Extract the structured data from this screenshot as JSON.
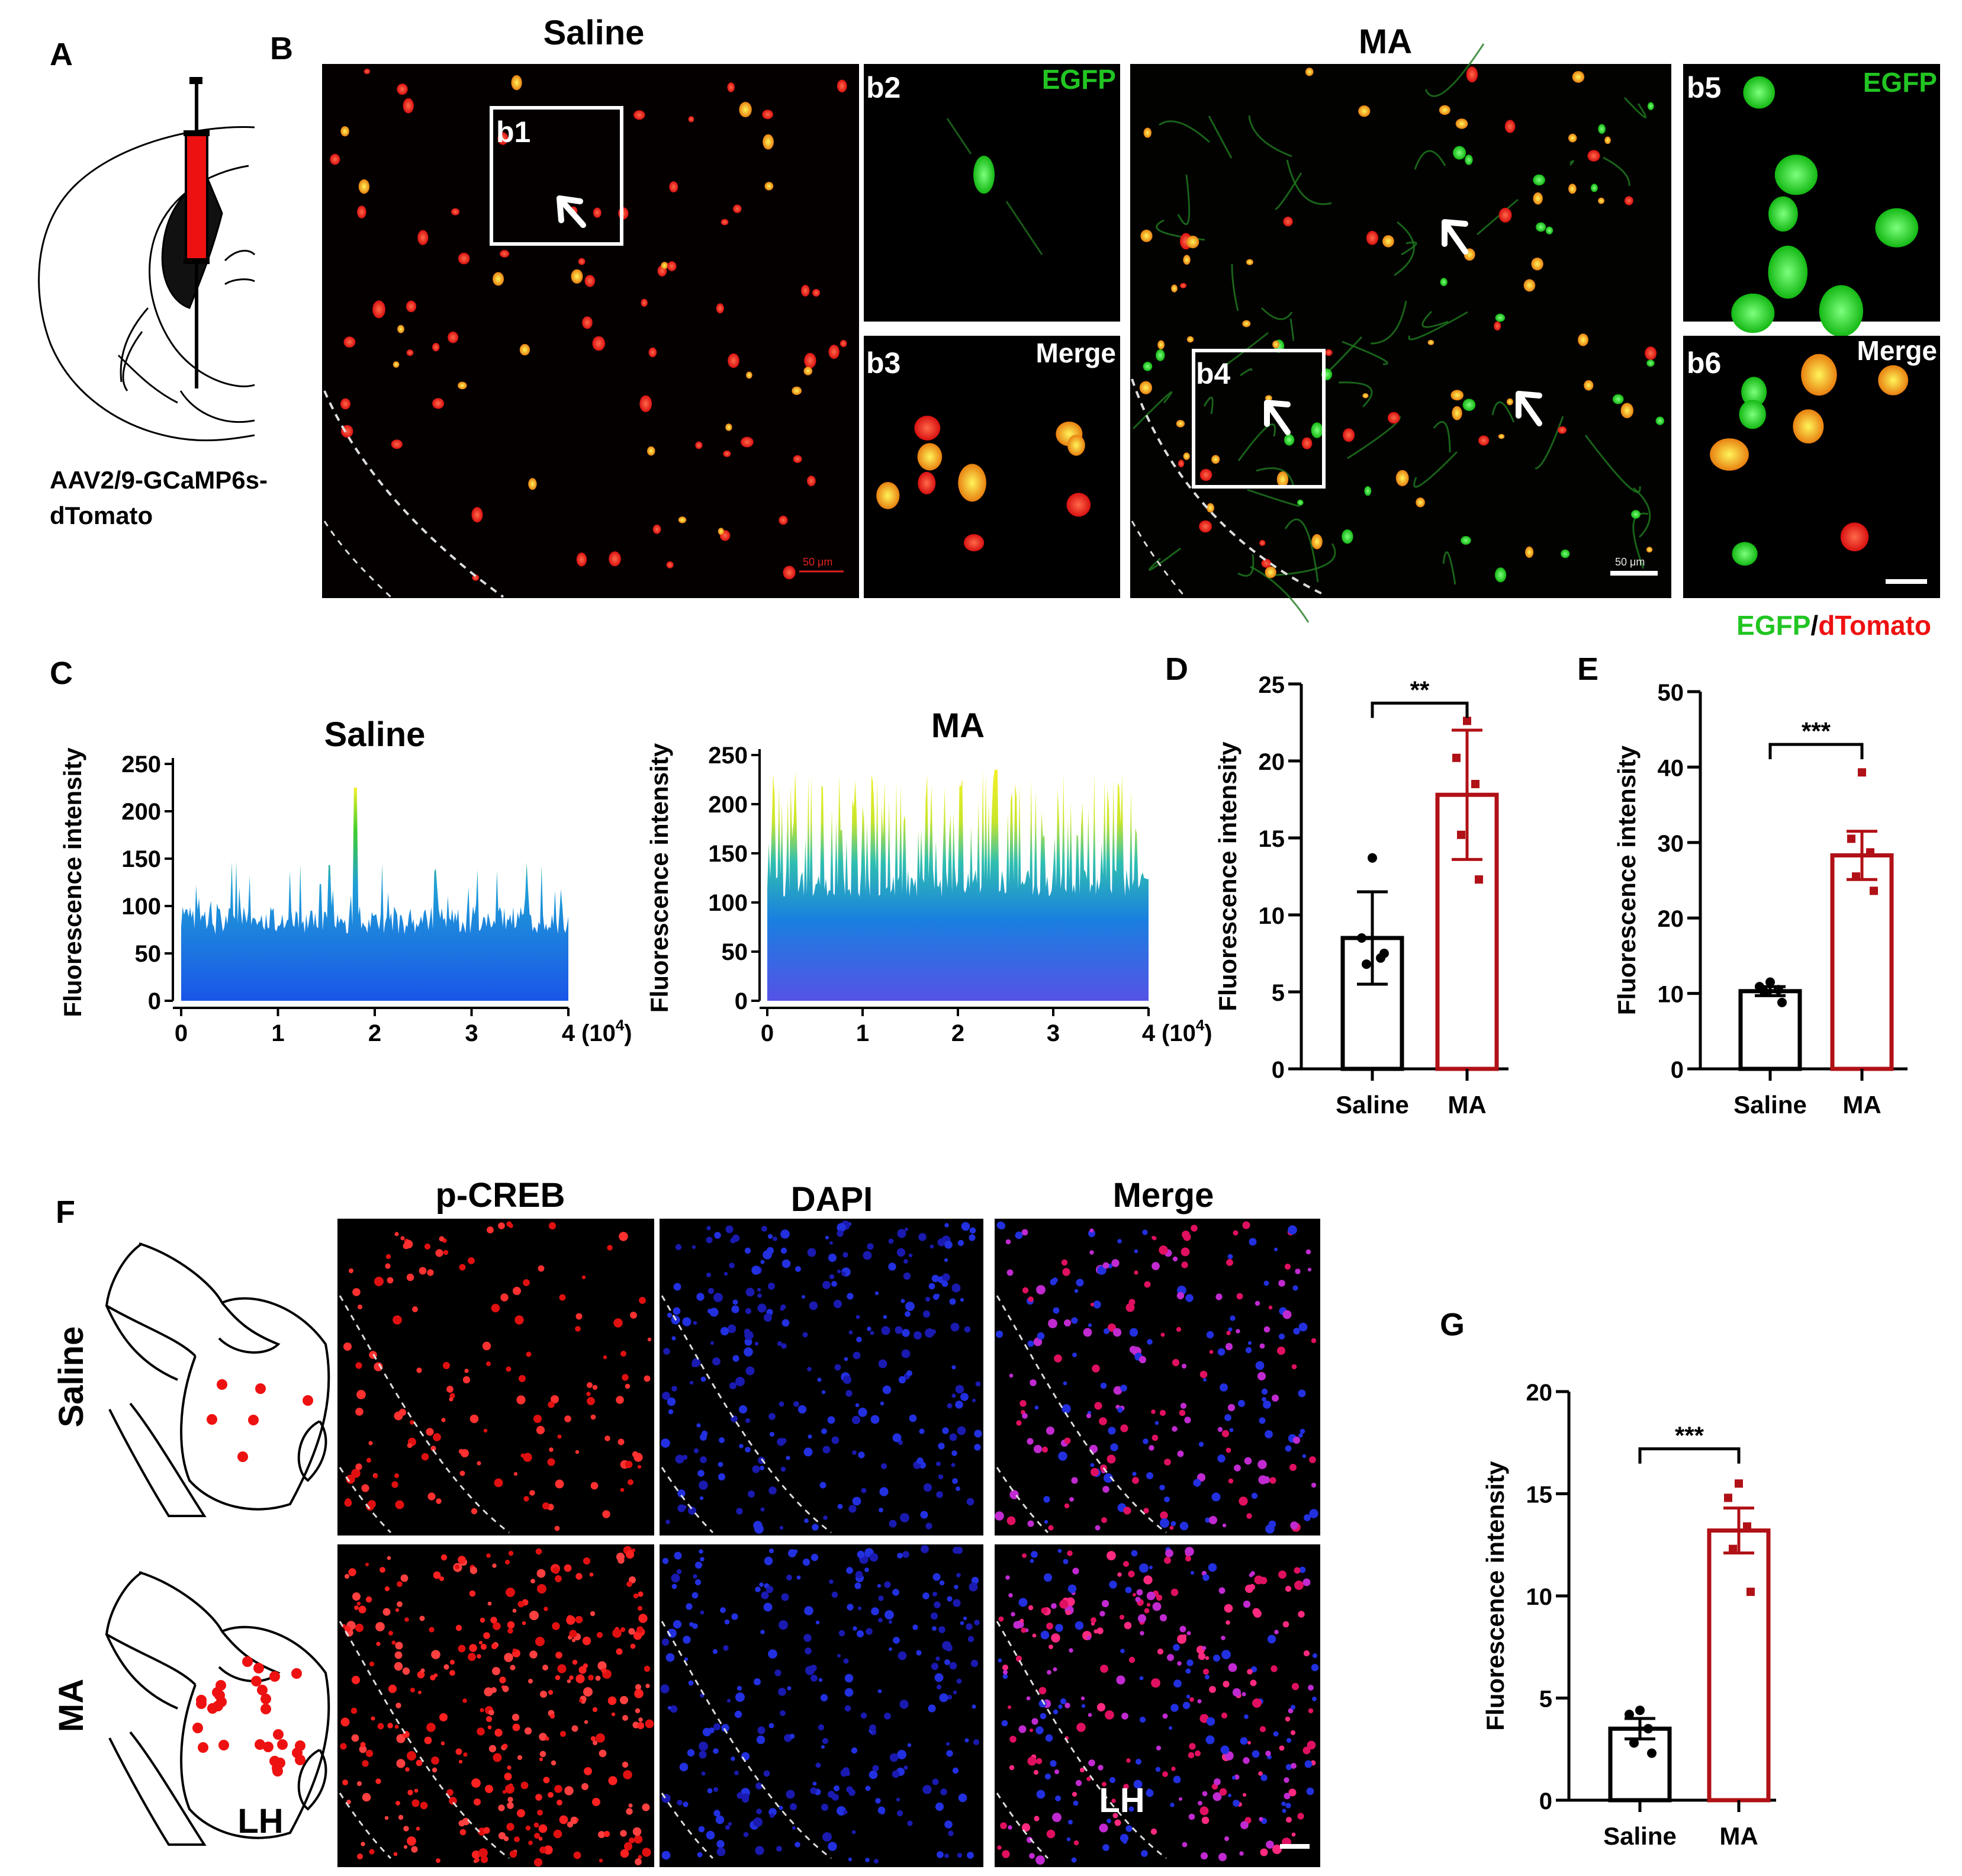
{
  "panels": {
    "a": "A",
    "b": "B",
    "c": "C",
    "d": "D",
    "e": "E",
    "f": "F",
    "g": "G"
  },
  "panel_a": {
    "construct_line1": "AAV2/9-GCaMP6s-",
    "construct_line2": "dTomato"
  },
  "panel_b": {
    "saline_title": "Saline",
    "ma_title": "MA",
    "insets": {
      "b1": "b1",
      "b2": "b2",
      "b3": "b3",
      "b4": "b4",
      "b5": "b5",
      "b6": "b6"
    },
    "egfp": "EGFP",
    "merge": "Merge",
    "scale_label": "50 μm",
    "legend": {
      "green": "EGFP",
      "slash": "/",
      "red": "dTomato"
    },
    "colors": {
      "egfp": "#22c522",
      "dtomato": "#ee1111"
    }
  },
  "panel_c": {
    "ylabel": "Fluorescence intensity",
    "xunit": "(10",
    "xunit_exp": "4",
    "xunit_close": ")",
    "plots": [
      {
        "title": "Saline",
        "yticks": [
          "250",
          "200",
          "150",
          "100",
          "50",
          "0"
        ],
        "xticks": [
          "0",
          "1",
          "2",
          "3",
          "4"
        ]
      },
      {
        "title": "MA",
        "yticks": [
          "250",
          "200",
          "150",
          "100",
          "50",
          "0"
        ],
        "xticks": [
          "0",
          "1",
          "2",
          "3",
          "4"
        ]
      }
    ]
  },
  "panel_f": {
    "col1": "p-CREB",
    "col2": "DAPI",
    "col3": "Merge",
    "row1": "Saline",
    "row2": "MA",
    "region": "LH",
    "region_label": "LH"
  },
  "chart_data": [
    {
      "id": "C-saline",
      "type": "area",
      "title": "Saline",
      "xlabel": "(10^4)",
      "ylabel": "Fluorescence intensity",
      "xlim": [
        0,
        4
      ],
      "ylim": [
        0,
        250
      ],
      "yticks": [
        0,
        50,
        100,
        150,
        200,
        250
      ],
      "description_series": [
        {
          "name": "intensity profile",
          "approx_baseline": 85,
          "approx_peak": 225
        }
      ]
    },
    {
      "id": "C-MA",
      "type": "area",
      "title": "MA",
      "xlabel": "(10^4)",
      "ylabel": "Fluorescence intensity",
      "xlim": [
        0,
        4
      ],
      "ylim": [
        0,
        250
      ],
      "yticks": [
        0,
        50,
        100,
        150,
        200,
        250
      ],
      "description_series": [
        {
          "name": "intensity profile",
          "approx_baseline": 120,
          "approx_peak": 235
        }
      ]
    },
    {
      "id": "D",
      "type": "bar",
      "categories": [
        "Saline",
        "MA"
      ],
      "values": [
        8.5,
        17.8
      ],
      "errors": [
        3.0,
        4.2
      ],
      "points": [
        [
          13.7,
          8.5,
          7.2,
          6.8,
          7.5
        ],
        [
          22.6,
          20.2,
          18.5,
          15.2,
          12.3
        ]
      ],
      "ylabel": "Fluorescence intensity",
      "ylim": [
        0,
        25
      ],
      "yticks": [
        0,
        5,
        10,
        15,
        20,
        25
      ],
      "significance": "**",
      "colors": [
        "#000000",
        "#b01116"
      ]
    },
    {
      "id": "E",
      "type": "bar",
      "categories": [
        "Saline",
        "MA"
      ],
      "values": [
        10.3,
        28.3
      ],
      "errors": [
        0.6,
        3.2
      ],
      "points": [
        [
          11.5,
          10.9,
          10.5,
          10.2,
          8.8
        ],
        [
          39.3,
          30.5,
          28.7,
          25.5,
          23.6
        ]
      ],
      "ylabel": "Fluorescence intensity",
      "ylim": [
        0,
        50
      ],
      "yticks": [
        0,
        10,
        20,
        30,
        40,
        50
      ],
      "significance": "***",
      "colors": [
        "#000000",
        "#b01116"
      ]
    },
    {
      "id": "G",
      "type": "bar",
      "categories": [
        "Saline",
        "MA"
      ],
      "values": [
        3.5,
        13.2
      ],
      "errors": [
        0.5,
        1.1
      ],
      "points": [
        [
          4.4,
          4.2,
          3.5,
          2.8,
          2.3
        ],
        [
          15.5,
          14.8,
          13.4,
          12.3,
          10.2
        ]
      ],
      "ylabel": "Fluorescence intensity",
      "ylim": [
        0,
        20
      ],
      "yticks": [
        0,
        5,
        10,
        15,
        20
      ],
      "significance": "***",
      "colors": [
        "#000000",
        "#b01116"
      ]
    }
  ]
}
